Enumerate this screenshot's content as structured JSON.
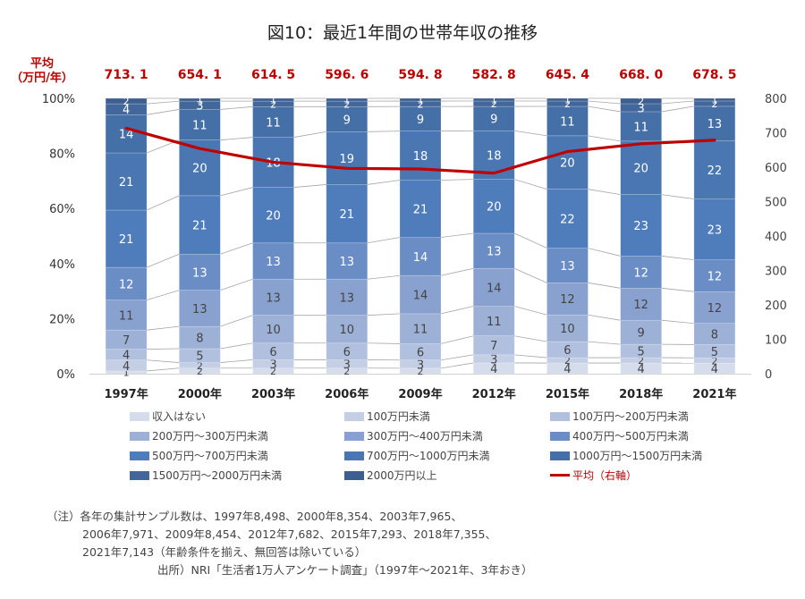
{
  "chart_data": {
    "type": "bar",
    "subtype": "stacked-100-with-line",
    "title": "図10：最近1年間の世帯年収の推移",
    "categories": [
      "1997年",
      "2000年",
      "2003年",
      "2006年",
      "2009年",
      "2012年",
      "2015年",
      "2018年",
      "2021年"
    ],
    "left_axis": {
      "ticks": [
        "0%",
        "20%",
        "40%",
        "60%",
        "80%",
        "100%"
      ],
      "range": [
        0,
        100
      ]
    },
    "right_axis": {
      "ticks": [
        "0",
        "100",
        "200",
        "300",
        "400",
        "500",
        "600",
        "700",
        "800"
      ],
      "range": [
        0,
        800
      ]
    },
    "series": [
      {
        "name": "収入はない",
        "color": "#d5dceb",
        "label_color": "#444444",
        "values": [
          1,
          2,
          2,
          2,
          2,
          4,
          4,
          4,
          4
        ]
      },
      {
        "name": "100万円未満",
        "color": "#c4cfe5",
        "label_color": "#444444",
        "values": [
          4,
          2,
          3,
          3,
          3,
          3,
          2,
          2,
          2
        ]
      },
      {
        "name": "100万円～200万円未満",
        "color": "#b1c0de",
        "label_color": "#444444",
        "values": [
          4,
          5,
          6,
          6,
          6,
          7,
          6,
          5,
          5
        ]
      },
      {
        "name": "200万円～300万円未満",
        "color": "#9db0d6",
        "label_color": "#444444",
        "values": [
          7,
          8,
          10,
          10,
          11,
          11,
          10,
          9,
          8
        ]
      },
      {
        "name": "300万円～400万円未満",
        "color": "#88a1cf",
        "label_color": "#444444",
        "values": [
          11,
          13,
          13,
          13,
          14,
          14,
          12,
          12,
          12
        ]
      },
      {
        "name": "400万円～500万円未満",
        "color": "#6b8dc6",
        "label_color": "#ffffff",
        "values": [
          12,
          13,
          13,
          13,
          14,
          13,
          13,
          12,
          12
        ]
      },
      {
        "name": "500万円～700万円未満",
        "color": "#4f7cbb",
        "label_color": "#ffffff",
        "values": [
          21,
          21,
          20,
          21,
          21,
          20,
          22,
          23,
          23
        ]
      },
      {
        "name": "700万円～1000万円未満",
        "color": "#4a77b2",
        "label_color": "#ffffff",
        "values": [
          21,
          20,
          18,
          19,
          18,
          18,
          20,
          20,
          22
        ]
      },
      {
        "name": "1000万円～1500万円未満",
        "color": "#456fa7",
        "label_color": "#ffffff",
        "values": [
          14,
          11,
          11,
          9,
          9,
          9,
          11,
          11,
          13
        ]
      },
      {
        "name": "1500万円～2000万円未満",
        "color": "#41679b",
        "label_color": "#ffffff",
        "values": [
          4,
          3,
          2,
          2,
          2,
          2,
          2,
          3,
          2
        ]
      },
      {
        "name": "2000万円以上",
        "color": "#3c5f8f",
        "label_color": "#ffffff",
        "values": [
          2,
          1,
          1,
          1,
          1,
          1,
          1,
          2,
          1
        ]
      }
    ],
    "line_series": {
      "name": "平均（右軸）",
      "color": "#c00000",
      "axis": "right",
      "values": [
        713.1,
        654.1,
        614.5,
        596.6,
        594.8,
        582.8,
        645.4,
        668.0,
        678.5
      ],
      "labels": [
        "713. 1",
        "654. 1",
        "614. 5",
        "596. 6",
        "594. 8",
        "582. 8",
        "645. 4",
        "668. 0",
        "678. 5"
      ]
    },
    "avg_label_line1": "平均",
    "avg_label_line2": "（万円/年）",
    "legend_position": "bottom"
  },
  "legend": [
    {
      "label": "収入はない",
      "color": "#d5dceb"
    },
    {
      "label": "100万円未満",
      "color": "#c4cfe5"
    },
    {
      "label": "100万円～200万円未満",
      "color": "#b1c0de"
    },
    {
      "label": "200万円～300万円未満",
      "color": "#9db0d6"
    },
    {
      "label": "300万円～400万円未満",
      "color": "#88a1cf"
    },
    {
      "label": "400万円～500万円未満",
      "color": "#6b8dc6"
    },
    {
      "label": "500万円～700万円未満",
      "color": "#4f7cbb"
    },
    {
      "label": "700万円～1000万円未満",
      "color": "#4a77b2"
    },
    {
      "label": "1000万円～1500万円未満",
      "color": "#456fa7"
    },
    {
      "label": "1500万円～2000万円未満",
      "color": "#41679b"
    },
    {
      "label": "2000万円以上",
      "color": "#3c5f8f"
    },
    {
      "label": "平均（右軸）",
      "color": "#c00000",
      "type": "line"
    }
  ],
  "notes": {
    "line1": "（注）各年の集計サンプル数は、1997年8,498、2000年8,354、2003年7,965、",
    "line2": "2006年7,971、2009年8,454、2012年7,682、2015年7,293、2018年7,355、",
    "line3": "2021年7,143（年齢条件を揃え、無回答は除いている）",
    "source": "出所）NRI「生活者1万人アンケート調査」（1997年～2021年、3年おき）"
  }
}
